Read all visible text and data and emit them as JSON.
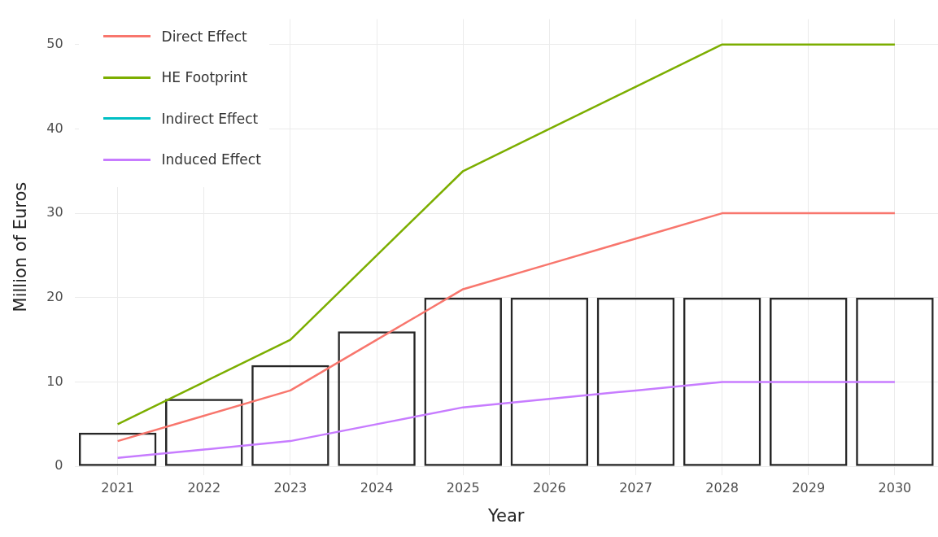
{
  "chart_data": {
    "type": "line",
    "xlabel": "Year",
    "ylabel": "Million of Euros",
    "categories": [
      "2021",
      "2022",
      "2023",
      "2024",
      "2025",
      "2026",
      "2027",
      "2028",
      "2029",
      "2030"
    ],
    "series": [
      {
        "type": "bar",
        "color": "#262626",
        "values": [
          4,
          8,
          12,
          16,
          20,
          20,
          20,
          20,
          20,
          20
        ]
      },
      {
        "name": "Direct Effect",
        "color": "#f8766d",
        "values": [
          3,
          6,
          9,
          15,
          21,
          24,
          27,
          30,
          30,
          30
        ]
      },
      {
        "name": "HE Footprint",
        "color": "#7cae00",
        "values": [
          5,
          10,
          15,
          25,
          35,
          40,
          45,
          50,
          50,
          50
        ]
      },
      {
        "name": "Indirect Effect",
        "color": "#00bfc4",
        "values": [
          null,
          null,
          null,
          null,
          null,
          null,
          null,
          null,
          null,
          null
        ]
      },
      {
        "name": "Induced Effect",
        "color": "#c77cff",
        "values": [
          1,
          2,
          3,
          5,
          7,
          8,
          9,
          10,
          10,
          10
        ]
      }
    ],
    "ylim": [
      -1,
      53
    ],
    "yticks": [
      0,
      10,
      20,
      30,
      40,
      50
    ],
    "grid": true,
    "legend": "top left"
  }
}
